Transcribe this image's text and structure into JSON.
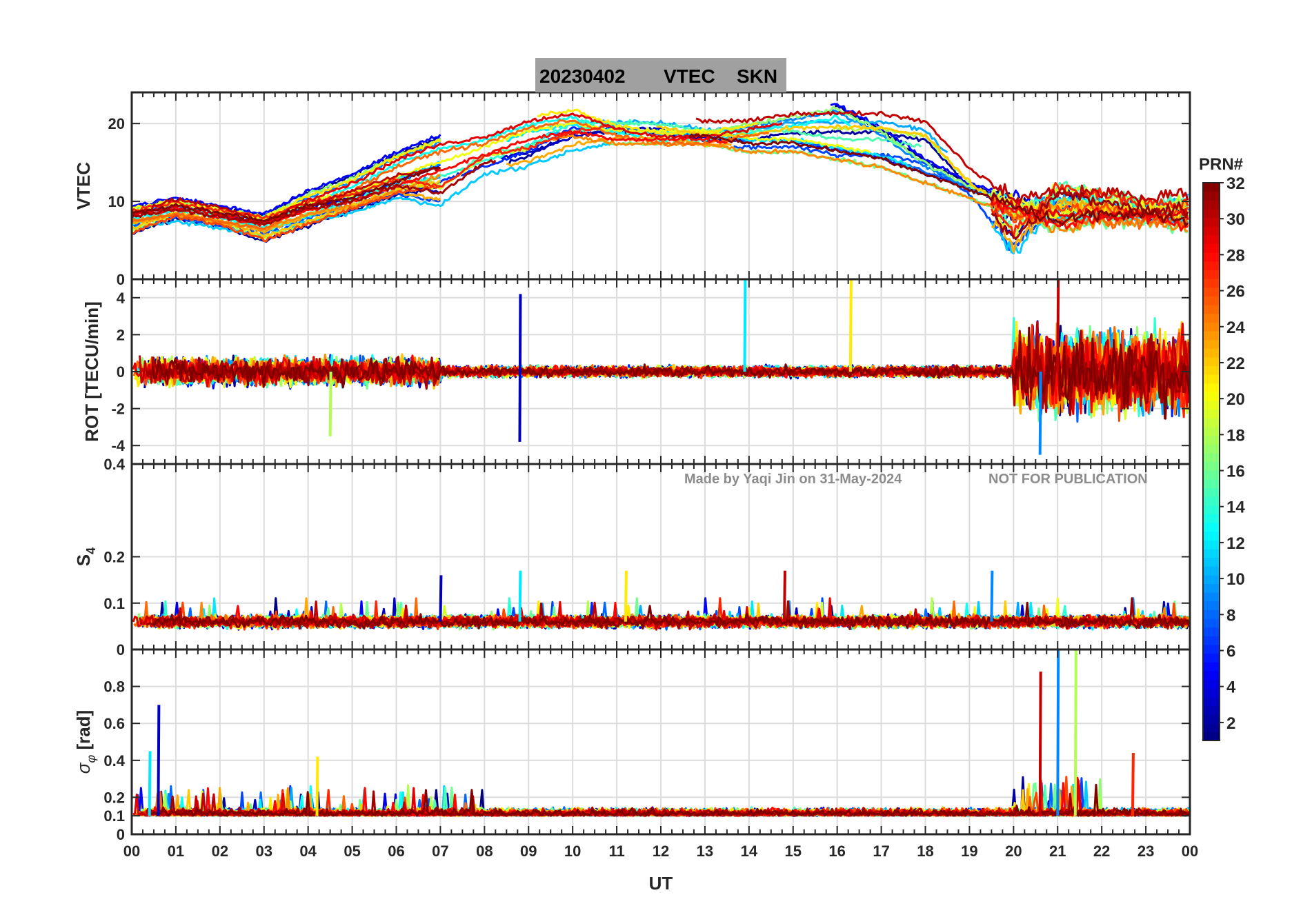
{
  "title": {
    "date": "20230402",
    "quantity": "VTEC",
    "station": "SKN"
  },
  "watermark": {
    "made_by": "Made by Yaqi Jin on 31-May-2024",
    "notice": "NOT FOR PUBLICATION"
  },
  "colorbar": {
    "title": "PRN#",
    "range": [
      1,
      32
    ],
    "ticks": [
      "2",
      "4",
      "6",
      "8",
      "10",
      "12",
      "14",
      "16",
      "18",
      "20",
      "22",
      "24",
      "26",
      "28",
      "30",
      "32"
    ],
    "colormap": "jet"
  },
  "chart_data": [
    {
      "type": "line",
      "panel": "vtec",
      "ylabel": "VTEC",
      "ylim": [
        0,
        24
      ],
      "yticks": [
        "0",
        "10",
        "20"
      ],
      "x_ticks": [
        "00",
        "01",
        "02",
        "03",
        "04",
        "05",
        "06",
        "07",
        "08",
        "09",
        "10",
        "11",
        "12",
        "13",
        "14",
        "15",
        "16",
        "17",
        "18",
        "19",
        "20",
        "21",
        "22",
        "23",
        "00"
      ],
      "grid": true,
      "series_note": "one line per satellite PRN 1-32, colored by PRN",
      "representative_series": [
        {
          "prn": 2,
          "x_hours": [
            0,
            1,
            2,
            3,
            4,
            5,
            6,
            7,
            8,
            9,
            10,
            11,
            12,
            13,
            14,
            15,
            16,
            17,
            18,
            19,
            20,
            21,
            22,
            23,
            24
          ],
          "y": [
            8,
            9,
            8,
            7,
            9,
            10,
            12,
            14,
            16,
            18,
            19,
            18,
            18,
            18,
            17,
            17,
            16,
            15,
            13,
            11,
            9,
            7,
            8,
            8,
            7
          ]
        },
        {
          "prn": 16,
          "x_hours": [
            0,
            1,
            2,
            3,
            4,
            5,
            6,
            7,
            8,
            9,
            10,
            11,
            12,
            13,
            14,
            15,
            16,
            17,
            18,
            19,
            20,
            21,
            22,
            23,
            24
          ],
          "y": [
            9,
            10,
            9,
            8,
            11,
            13,
            16,
            18,
            19,
            21,
            22,
            20,
            19,
            19,
            20,
            21,
            22,
            19,
            15,
            12,
            10,
            9,
            9,
            9,
            9
          ]
        },
        {
          "prn": 28,
          "x_hours": [
            0,
            1,
            2,
            3,
            4,
            5,
            6,
            7,
            8,
            9,
            10,
            11,
            12,
            13,
            14,
            15,
            16,
            17,
            18,
            19,
            20,
            21,
            22,
            23,
            24
          ],
          "y": [
            7,
            9,
            8,
            6,
            8,
            10,
            12,
            13,
            15,
            17,
            20,
            20,
            20,
            19,
            19,
            20,
            20,
            20,
            19,
            13,
            9,
            10,
            10,
            9,
            10
          ]
        },
        {
          "prn": 31,
          "x_hours": [
            0,
            1,
            2,
            3,
            4,
            5,
            6,
            7,
            8,
            9,
            10,
            11,
            12,
            13,
            14,
            15,
            16,
            17,
            18,
            19,
            20,
            21,
            22,
            23,
            24
          ],
          "y": [
            8,
            9,
            8,
            7,
            9,
            10,
            12,
            11,
            15,
            16,
            18,
            19,
            19,
            18,
            18,
            18,
            17,
            17,
            16,
            12,
            5,
            11,
            10,
            9,
            9
          ]
        }
      ]
    },
    {
      "type": "line",
      "panel": "rot",
      "ylabel": "ROT [TECU/min]",
      "ylim": [
        -5,
        5
      ],
      "yticks": [
        "-4",
        "-2",
        "0",
        "2",
        "4"
      ],
      "grid": true,
      "description_values": {
        "baseline": 0,
        "quiet_amplitude": 1.0,
        "active_start_hour": 20,
        "active_amplitude": 3.0,
        "spikes": [
          {
            "x_hour": 8.8,
            "min": -3.8,
            "max": 4.2
          },
          {
            "x_hour": 13.9,
            "max": 5.0
          },
          {
            "x_hour": 16.3,
            "max": 5.0
          },
          {
            "x_hour": 21.0,
            "max": 5.0
          },
          {
            "x_hour": 20.6,
            "min": -4.5
          },
          {
            "x_hour": 4.5,
            "min": -3.5
          }
        ]
      }
    },
    {
      "type": "line",
      "panel": "s4",
      "ylabel": "S4",
      "ylim": [
        0,
        0.4
      ],
      "yticks": [
        "0",
        "0.1",
        "0.2",
        "0.4"
      ],
      "grid": true,
      "description_values": {
        "baseline": 0.06,
        "spread": 0.03,
        "spikes": [
          {
            "x_hour": 7.0,
            "max": 0.16
          },
          {
            "x_hour": 8.8,
            "max": 0.17
          },
          {
            "x_hour": 11.2,
            "max": 0.17
          },
          {
            "x_hour": 14.8,
            "max": 0.17
          },
          {
            "x_hour": 19.5,
            "max": 0.17
          }
        ]
      }
    },
    {
      "type": "line",
      "panel": "sigma_phi",
      "ylabel": "σ_φ [rad]",
      "ylim": [
        0,
        1.0
      ],
      "yticks": [
        "0",
        "0.1",
        "0.2",
        "0.4",
        "0.6",
        "0.8"
      ],
      "xlabel": "UT",
      "grid": true,
      "description_values": {
        "baseline": 0.1,
        "spikes": [
          {
            "x_hour": 0.6,
            "max": 0.7
          },
          {
            "x_hour": 0.4,
            "max": 0.45
          },
          {
            "x_hour": 4.2,
            "max": 0.42
          },
          {
            "x_hour": 20.6,
            "max": 0.88
          },
          {
            "x_hour": 21.0,
            "max": 1.0
          },
          {
            "x_hour": 21.4,
            "max": 1.0
          },
          {
            "x_hour": 22.7,
            "max": 0.44
          }
        ]
      }
    }
  ]
}
